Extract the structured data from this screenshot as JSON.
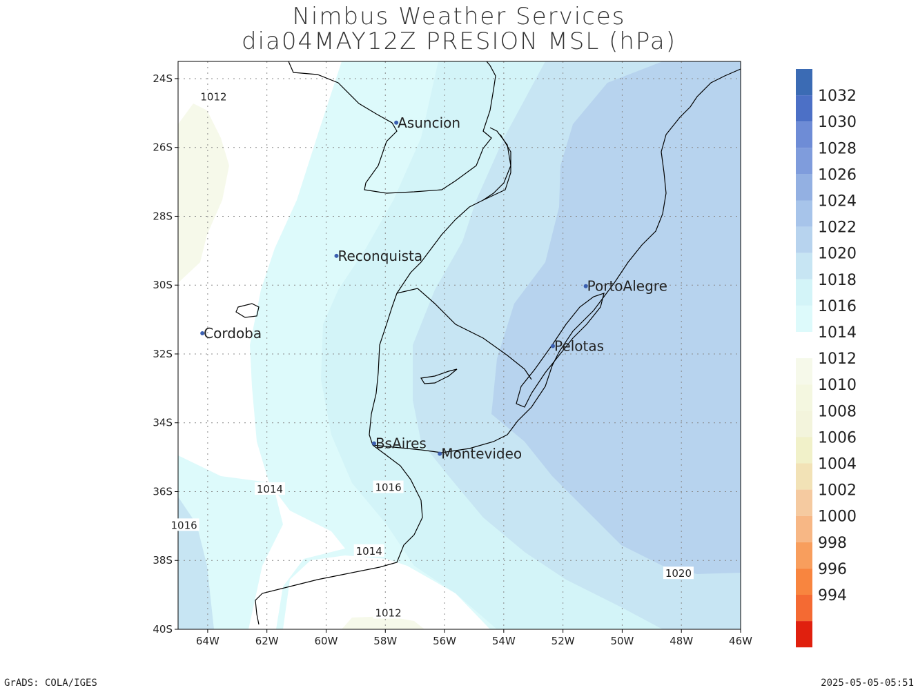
{
  "header": {
    "line1": "Nimbus Weather Services",
    "line2": "dia04MAY12Z PRESION MSL (hPa)"
  },
  "axes": {
    "lat_labels": [
      "24S",
      "26S",
      "28S",
      "30S",
      "32S",
      "34S",
      "36S",
      "38S",
      "40S"
    ],
    "lon_labels": [
      "64W",
      "62W",
      "60W",
      "58W",
      "56W",
      "54W",
      "52W",
      "50W",
      "48W",
      "46W"
    ]
  },
  "cities": [
    {
      "name": "Asuncion",
      "lat": -25.28,
      "lon": -57.63
    },
    {
      "name": "Reconquista",
      "lat": -29.15,
      "lon": -59.65
    },
    {
      "name": "Cordoba",
      "lat": -31.4,
      "lon": -64.18
    },
    {
      "name": "PortoAlegre",
      "lat": -30.03,
      "lon": -51.23
    },
    {
      "name": "Pelotas",
      "lat": -31.77,
      "lon": -52.34
    },
    {
      "name": "BsAires",
      "lat": -34.6,
      "lon": -58.38
    },
    {
      "name": "Montevideo",
      "lat": -34.9,
      "lon": -56.16
    }
  ],
  "contour_labels": [
    {
      "text": "1012",
      "lat": -24.55,
      "lon": -63.8
    },
    {
      "text": "1014",
      "lat": -35.95,
      "lon": -61.9
    },
    {
      "text": "1016",
      "lat": -35.9,
      "lon": -57.9
    },
    {
      "text": "1016",
      "lat": -37.0,
      "lon": -64.8
    },
    {
      "text": "1014",
      "lat": -37.75,
      "lon": -58.55
    },
    {
      "text": "1020",
      "lat": -38.4,
      "lon": -48.1
    },
    {
      "text": "1012",
      "lat": -39.55,
      "lon": -57.9
    }
  ],
  "legend": {
    "upper": [
      {
        "label": "1032",
        "color": "#3b6bb4"
      },
      {
        "label": "1030",
        "color": "#4c70c6"
      },
      {
        "label": "1028",
        "color": "#6e8cd6"
      },
      {
        "label": "1026",
        "color": "#7f9cdc"
      },
      {
        "label": "1024",
        "color": "#93b0e2"
      },
      {
        "label": "1022",
        "color": "#a7c4ea"
      },
      {
        "label": "1020",
        "color": "#b7d3ee"
      },
      {
        "label": "1018",
        "color": "#c7e5f3"
      },
      {
        "label": "1016",
        "color": "#d3f4f8"
      },
      {
        "label": "1014",
        "color": "#ddfafb"
      }
    ],
    "lower": [
      {
        "label": "1012",
        "color": "#f6f9ea"
      },
      {
        "label": "1010",
        "color": "#f4f7e0"
      },
      {
        "label": "1008",
        "color": "#f3f4dc"
      },
      {
        "label": "1006",
        "color": "#f1f1c9"
      },
      {
        "label": "1004",
        "color": "#f2e2b6"
      },
      {
        "label": "1002",
        "color": "#f5caa0"
      },
      {
        "label": "1000",
        "color": "#f7b785"
      },
      {
        "label": "998",
        "color": "#f89e5d"
      },
      {
        "label": "996",
        "color": "#f8853f"
      },
      {
        "label": "994",
        "color": "#f46a33"
      },
      {
        "label": "",
        "color": "#e0200e"
      }
    ]
  },
  "colors": {
    "p1012": "#f6f9ea",
    "p1014": "#ffffff",
    "p1016": "#ddfafb",
    "p1018": "#d3f4f8",
    "p1020": "#c7e5f3",
    "p1022": "#b7d3ee",
    "coast": "#000000",
    "city_dot": "#3b5fb0"
  },
  "footer": {
    "left": "GrADS: COLA/IGES",
    "right": "2025-05-05-05:51"
  }
}
